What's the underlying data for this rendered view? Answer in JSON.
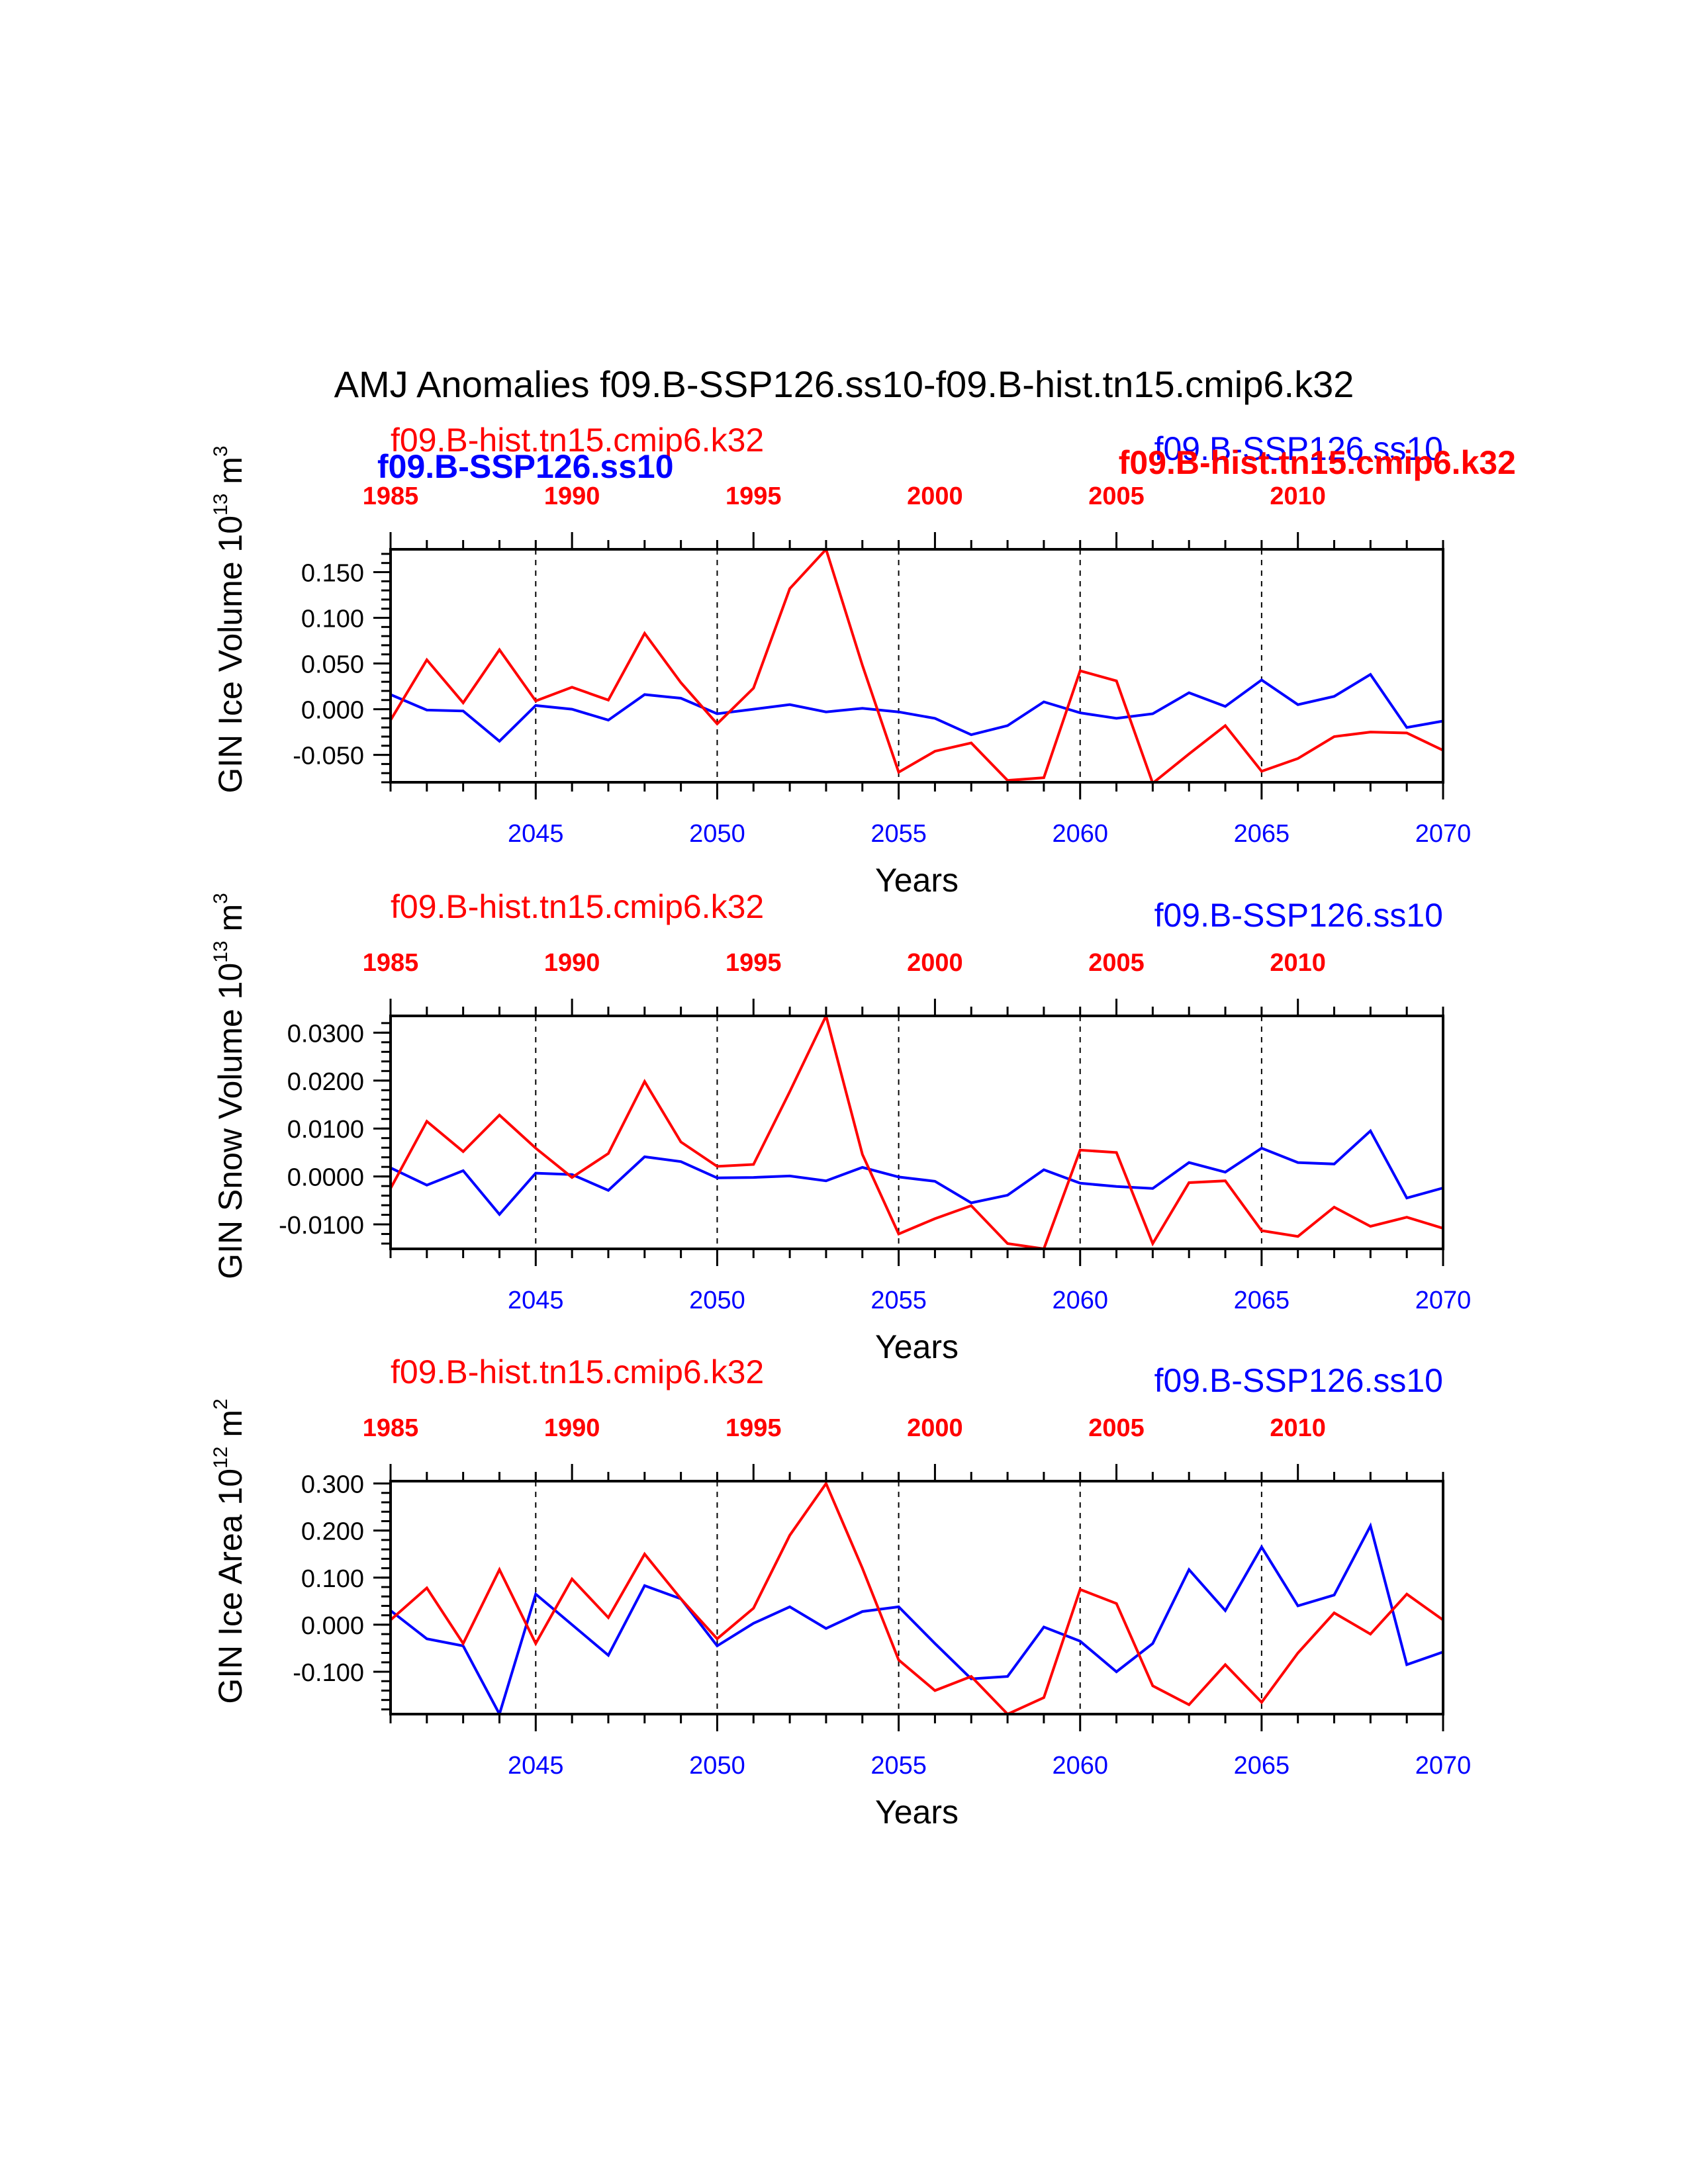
{
  "title": "AMJ Anomalies f09.B-SSP126.ss10-f09.B-hist.tn15.cmip6.k32",
  "colors": {
    "ssp": "#0000ff",
    "hist": "#ff0000"
  },
  "overlay_labels": {
    "ssp_bold_left": "f09.B-SSP126.ss10",
    "hist_bold_right": "f09.B-hist.tn15.cmip6.k32"
  },
  "chart_data": [
    {
      "type": "line",
      "ylabel": "GIN Ice Volume 10",
      "ylabel_exp": "13",
      "ylabel_unit": " m",
      "ylabel_unit_exp": "3",
      "xlabel": "Years",
      "ylim": [
        -0.08,
        0.175
      ],
      "yticks": [
        -0.05,
        0.0,
        0.05,
        0.1,
        0.15
      ],
      "ytick_labels": [
        "-0.050",
        "0.000",
        "0.050",
        "0.100",
        "0.150"
      ],
      "ytick_minor": 0.01,
      "bottom_axis": {
        "xlim": [
          2041,
          2070
        ],
        "ticks": [
          2045,
          2050,
          2055,
          2060,
          2065,
          2070
        ],
        "labels": [
          "2045",
          "2050",
          "2055",
          "2060",
          "2065",
          "2070"
        ]
      },
      "top_axis": {
        "xlim": [
          1985,
          2014
        ],
        "ticks": [
          1985,
          1990,
          1995,
          2000,
          2005,
          2010
        ],
        "labels": [
          "1985",
          "1990",
          "1995",
          "2000",
          "2005",
          "2010"
        ]
      },
      "series": [
        {
          "name": "f09.B-SSP126.ss10",
          "color": "#0000ff",
          "x": [
            2041,
            2042,
            2043,
            2044,
            2045,
            2046,
            2047,
            2048,
            2049,
            2050,
            2051,
            2052,
            2053,
            2054,
            2055,
            2056,
            2057,
            2058,
            2059,
            2060,
            2061,
            2062,
            2063,
            2064,
            2065,
            2066,
            2067,
            2068,
            2069,
            2070
          ],
          "values": [
            0.016,
            -0.001,
            -0.002,
            -0.035,
            0.004,
            0.0,
            -0.012,
            0.016,
            0.012,
            -0.005,
            0.0,
            0.005,
            -0.003,
            0.001,
            -0.003,
            -0.01,
            -0.028,
            -0.018,
            0.008,
            -0.004,
            -0.01,
            -0.005,
            0.018,
            0.003,
            0.032,
            0.005,
            0.014,
            0.038,
            -0.02,
            -0.013
          ]
        },
        {
          "name": "f09.B-hist.tn15.cmip6.k32",
          "color": "#ff0000",
          "x": [
            1985,
            1986,
            1987,
            1988,
            1989,
            1990,
            1991,
            1992,
            1993,
            1994,
            1995,
            1996,
            1997,
            1998,
            1999,
            2000,
            2001,
            2002,
            2003,
            2004,
            2005,
            2006,
            2007,
            2008,
            2009,
            2010,
            2011,
            2012,
            2013,
            2014
          ],
          "values": [
            -0.012,
            0.054,
            0.007,
            0.065,
            0.009,
            0.024,
            0.01,
            0.083,
            0.029,
            -0.016,
            0.023,
            0.132,
            0.175,
            0.048,
            -0.069,
            -0.046,
            -0.037,
            -0.078,
            -0.075,
            0.042,
            0.031,
            -0.081,
            -0.049,
            -0.018,
            -0.068,
            -0.054,
            -0.03,
            -0.025,
            -0.026,
            -0.045
          ]
        }
      ],
      "left_title": "f09.B-hist.tn15.cmip6.k32",
      "right_title": "f09.B-SSP126.ss10"
    },
    {
      "type": "line",
      "ylabel": "GIN Snow Volume 10",
      "ylabel_exp": "13",
      "ylabel_unit": " m",
      "ylabel_unit_exp": "3",
      "xlabel": "Years",
      "ylim": [
        -0.0151,
        0.0335
      ],
      "yticks": [
        -0.01,
        0.0,
        0.01,
        0.02,
        0.03
      ],
      "ytick_labels": [
        "-0.0100",
        "0.0000",
        "0.0100",
        "0.0200",
        "0.0300"
      ],
      "ytick_minor": 0.002,
      "bottom_axis": {
        "xlim": [
          2041,
          2070
        ],
        "ticks": [
          2045,
          2050,
          2055,
          2060,
          2065,
          2070
        ],
        "labels": [
          "2045",
          "2050",
          "2055",
          "2060",
          "2065",
          "2070"
        ]
      },
      "top_axis": {
        "xlim": [
          1985,
          2014
        ],
        "ticks": [
          1985,
          1990,
          1995,
          2000,
          2005,
          2010
        ],
        "labels": [
          "1985",
          "1990",
          "1995",
          "2000",
          "2005",
          "2010"
        ]
      },
      "series": [
        {
          "name": "f09.B-SSP126.ss10",
          "color": "#0000ff",
          "x": [
            2041,
            2042,
            2043,
            2044,
            2045,
            2046,
            2047,
            2048,
            2049,
            2050,
            2051,
            2052,
            2053,
            2054,
            2055,
            2056,
            2057,
            2058,
            2059,
            2060,
            2061,
            2062,
            2063,
            2064,
            2065,
            2066,
            2067,
            2068,
            2069,
            2070
          ],
          "values": [
            0.0018,
            -0.0018,
            0.0012,
            -0.0079,
            0.0007,
            0.0004,
            -0.0029,
            0.0041,
            0.0031,
            -0.0003,
            -0.0002,
            0.0001,
            -0.0009,
            0.0019,
            -0.0001,
            -0.001,
            -0.0055,
            -0.0039,
            0.0014,
            -0.0014,
            -0.0021,
            -0.0025,
            0.0029,
            0.0009,
            0.0059,
            0.0029,
            0.0026,
            0.0095,
            -0.0045,
            -0.0024
          ]
        },
        {
          "name": "f09.B-hist.tn15.cmip6.k32",
          "color": "#ff0000",
          "x": [
            1985,
            1986,
            1987,
            1988,
            1989,
            1990,
            1991,
            1992,
            1993,
            1994,
            1995,
            1996,
            1997,
            1998,
            1999,
            2000,
            2001,
            2002,
            2003,
            2004,
            2005,
            2006,
            2007,
            2008,
            2009,
            2010,
            2011,
            2012,
            2013,
            2014
          ],
          "values": [
            -0.0025,
            0.0115,
            0.0052,
            0.0128,
            0.0059,
            -0.0002,
            0.0048,
            0.0198,
            0.0072,
            0.0021,
            0.0025,
            0.0177,
            0.0335,
            0.0046,
            -0.012,
            -0.0088,
            -0.0061,
            -0.014,
            -0.0151,
            0.0055,
            0.005,
            -0.014,
            -0.0013,
            -0.0009,
            -0.0113,
            -0.0125,
            -0.0064,
            -0.0104,
            -0.0085,
            -0.0108
          ]
        }
      ],
      "left_title": "f09.B-hist.tn15.cmip6.k32",
      "right_title": "f09.B-SSP126.ss10"
    },
    {
      "type": "line",
      "ylabel": "GIN Ice Area 10",
      "ylabel_exp": "12",
      "ylabel_unit": " m",
      "ylabel_unit_exp": "2",
      "xlabel": "Years",
      "ylim": [
        -0.19,
        0.305
      ],
      "yticks": [
        -0.1,
        0.0,
        0.1,
        0.2,
        0.3
      ],
      "ytick_labels": [
        "-0.100",
        "0.000",
        "0.100",
        "0.200",
        "0.300"
      ],
      "ytick_minor": 0.02,
      "bottom_axis": {
        "xlim": [
          2041,
          2070
        ],
        "ticks": [
          2045,
          2050,
          2055,
          2060,
          2065,
          2070
        ],
        "labels": [
          "2045",
          "2050",
          "2055",
          "2060",
          "2065",
          "2070"
        ]
      },
      "top_axis": {
        "xlim": [
          1985,
          2014
        ],
        "ticks": [
          1985,
          1990,
          1995,
          2000,
          2005,
          2010
        ],
        "labels": [
          "1985",
          "1990",
          "1995",
          "2000",
          "2005",
          "2010"
        ]
      },
      "series": [
        {
          "name": "f09.B-SSP126.ss10",
          "color": "#0000ff",
          "x": [
            2041,
            2042,
            2043,
            2044,
            2045,
            2046,
            2047,
            2048,
            2049,
            2050,
            2051,
            2052,
            2053,
            2054,
            2055,
            2056,
            2057,
            2058,
            2059,
            2060,
            2061,
            2062,
            2063,
            2064,
            2065,
            2066,
            2067,
            2068,
            2069,
            2070
          ],
          "values": [
            0.03,
            -0.03,
            -0.045,
            -0.19,
            0.065,
            0.0,
            -0.065,
            0.083,
            0.055,
            -0.045,
            0.003,
            0.038,
            -0.008,
            0.028,
            0.038,
            -0.04,
            -0.115,
            -0.11,
            -0.005,
            -0.035,
            -0.1,
            -0.04,
            0.117,
            0.03,
            0.165,
            0.04,
            0.063,
            0.21,
            -0.085,
            -0.058
          ]
        },
        {
          "name": "f09.B-hist.tn15.cmip6.k32",
          "color": "#ff0000",
          "x": [
            1985,
            1986,
            1987,
            1988,
            1989,
            1990,
            1991,
            1992,
            1993,
            1994,
            1995,
            1996,
            1997,
            1998,
            1999,
            2000,
            2001,
            2002,
            2003,
            2004,
            2005,
            2006,
            2007,
            2008,
            2009,
            2010,
            2011,
            2012,
            2013,
            2014
          ],
          "values": [
            0.01,
            0.078,
            -0.04,
            0.117,
            -0.04,
            0.097,
            0.015,
            0.15,
            0.055,
            -0.03,
            0.035,
            0.19,
            0.3,
            0.12,
            -0.075,
            -0.14,
            -0.11,
            -0.19,
            -0.155,
            0.075,
            0.045,
            -0.13,
            -0.17,
            -0.085,
            -0.165,
            -0.06,
            0.025,
            -0.02,
            0.065,
            0.01
          ]
        }
      ],
      "left_title": "f09.B-hist.tn15.cmip6.k32",
      "right_title": "f09.B-SSP126.ss10"
    }
  ]
}
